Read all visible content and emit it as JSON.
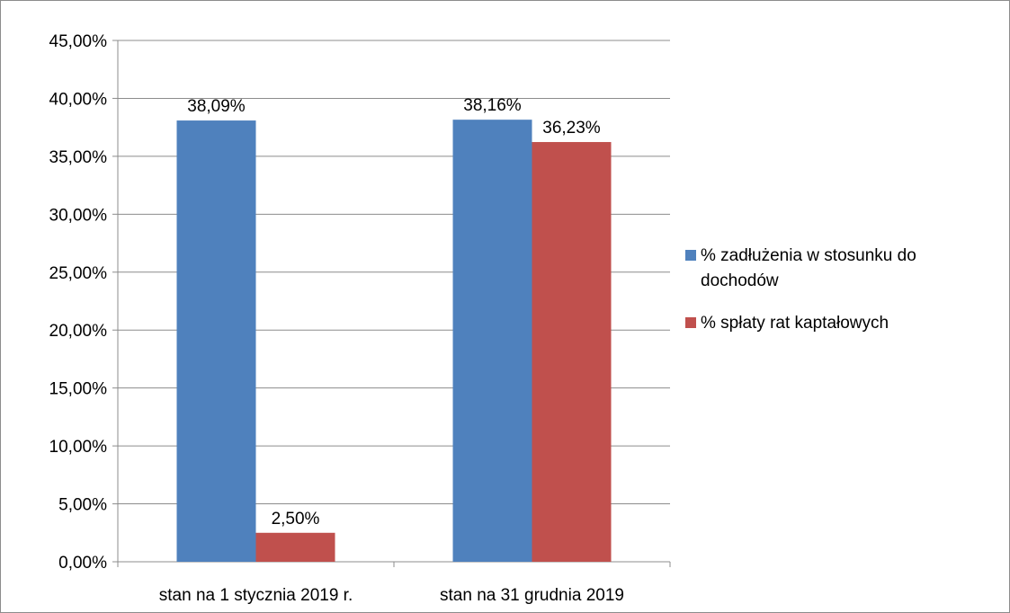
{
  "chart_data": {
    "type": "bar",
    "categories": [
      "stan na 1 stycznia 2019 r.",
      "stan na 31 grudnia 2019"
    ],
    "series": [
      {
        "name": "% zadłużenia w stosunku do dochodów",
        "name_lines": [
          "% zadłużenia w stosunku do",
          "dochodów"
        ],
        "color": "#4f81bd",
        "values": [
          38.09,
          38.16
        ],
        "labels": [
          "38,09%",
          "38,16%"
        ]
      },
      {
        "name": "% spłaty rat kaptałowych",
        "name_lines": [
          "% spłaty rat kaptałowych"
        ],
        "color": "#c0504d",
        "values": [
          2.5,
          36.23
        ],
        "labels": [
          "2,50%",
          "36,23%"
        ]
      }
    ],
    "ylim": [
      0,
      45
    ],
    "yticks": [
      0,
      5,
      10,
      15,
      20,
      25,
      30,
      35,
      40,
      45
    ],
    "ytick_labels": [
      "0,00%",
      "5,00%",
      "10,00%",
      "15,00%",
      "20,00%",
      "25,00%",
      "30,00%",
      "35,00%",
      "40,00%",
      "45,00%"
    ],
    "grid": true,
    "legend_position": "right",
    "title": "",
    "xlabel": "",
    "ylabel": ""
  }
}
